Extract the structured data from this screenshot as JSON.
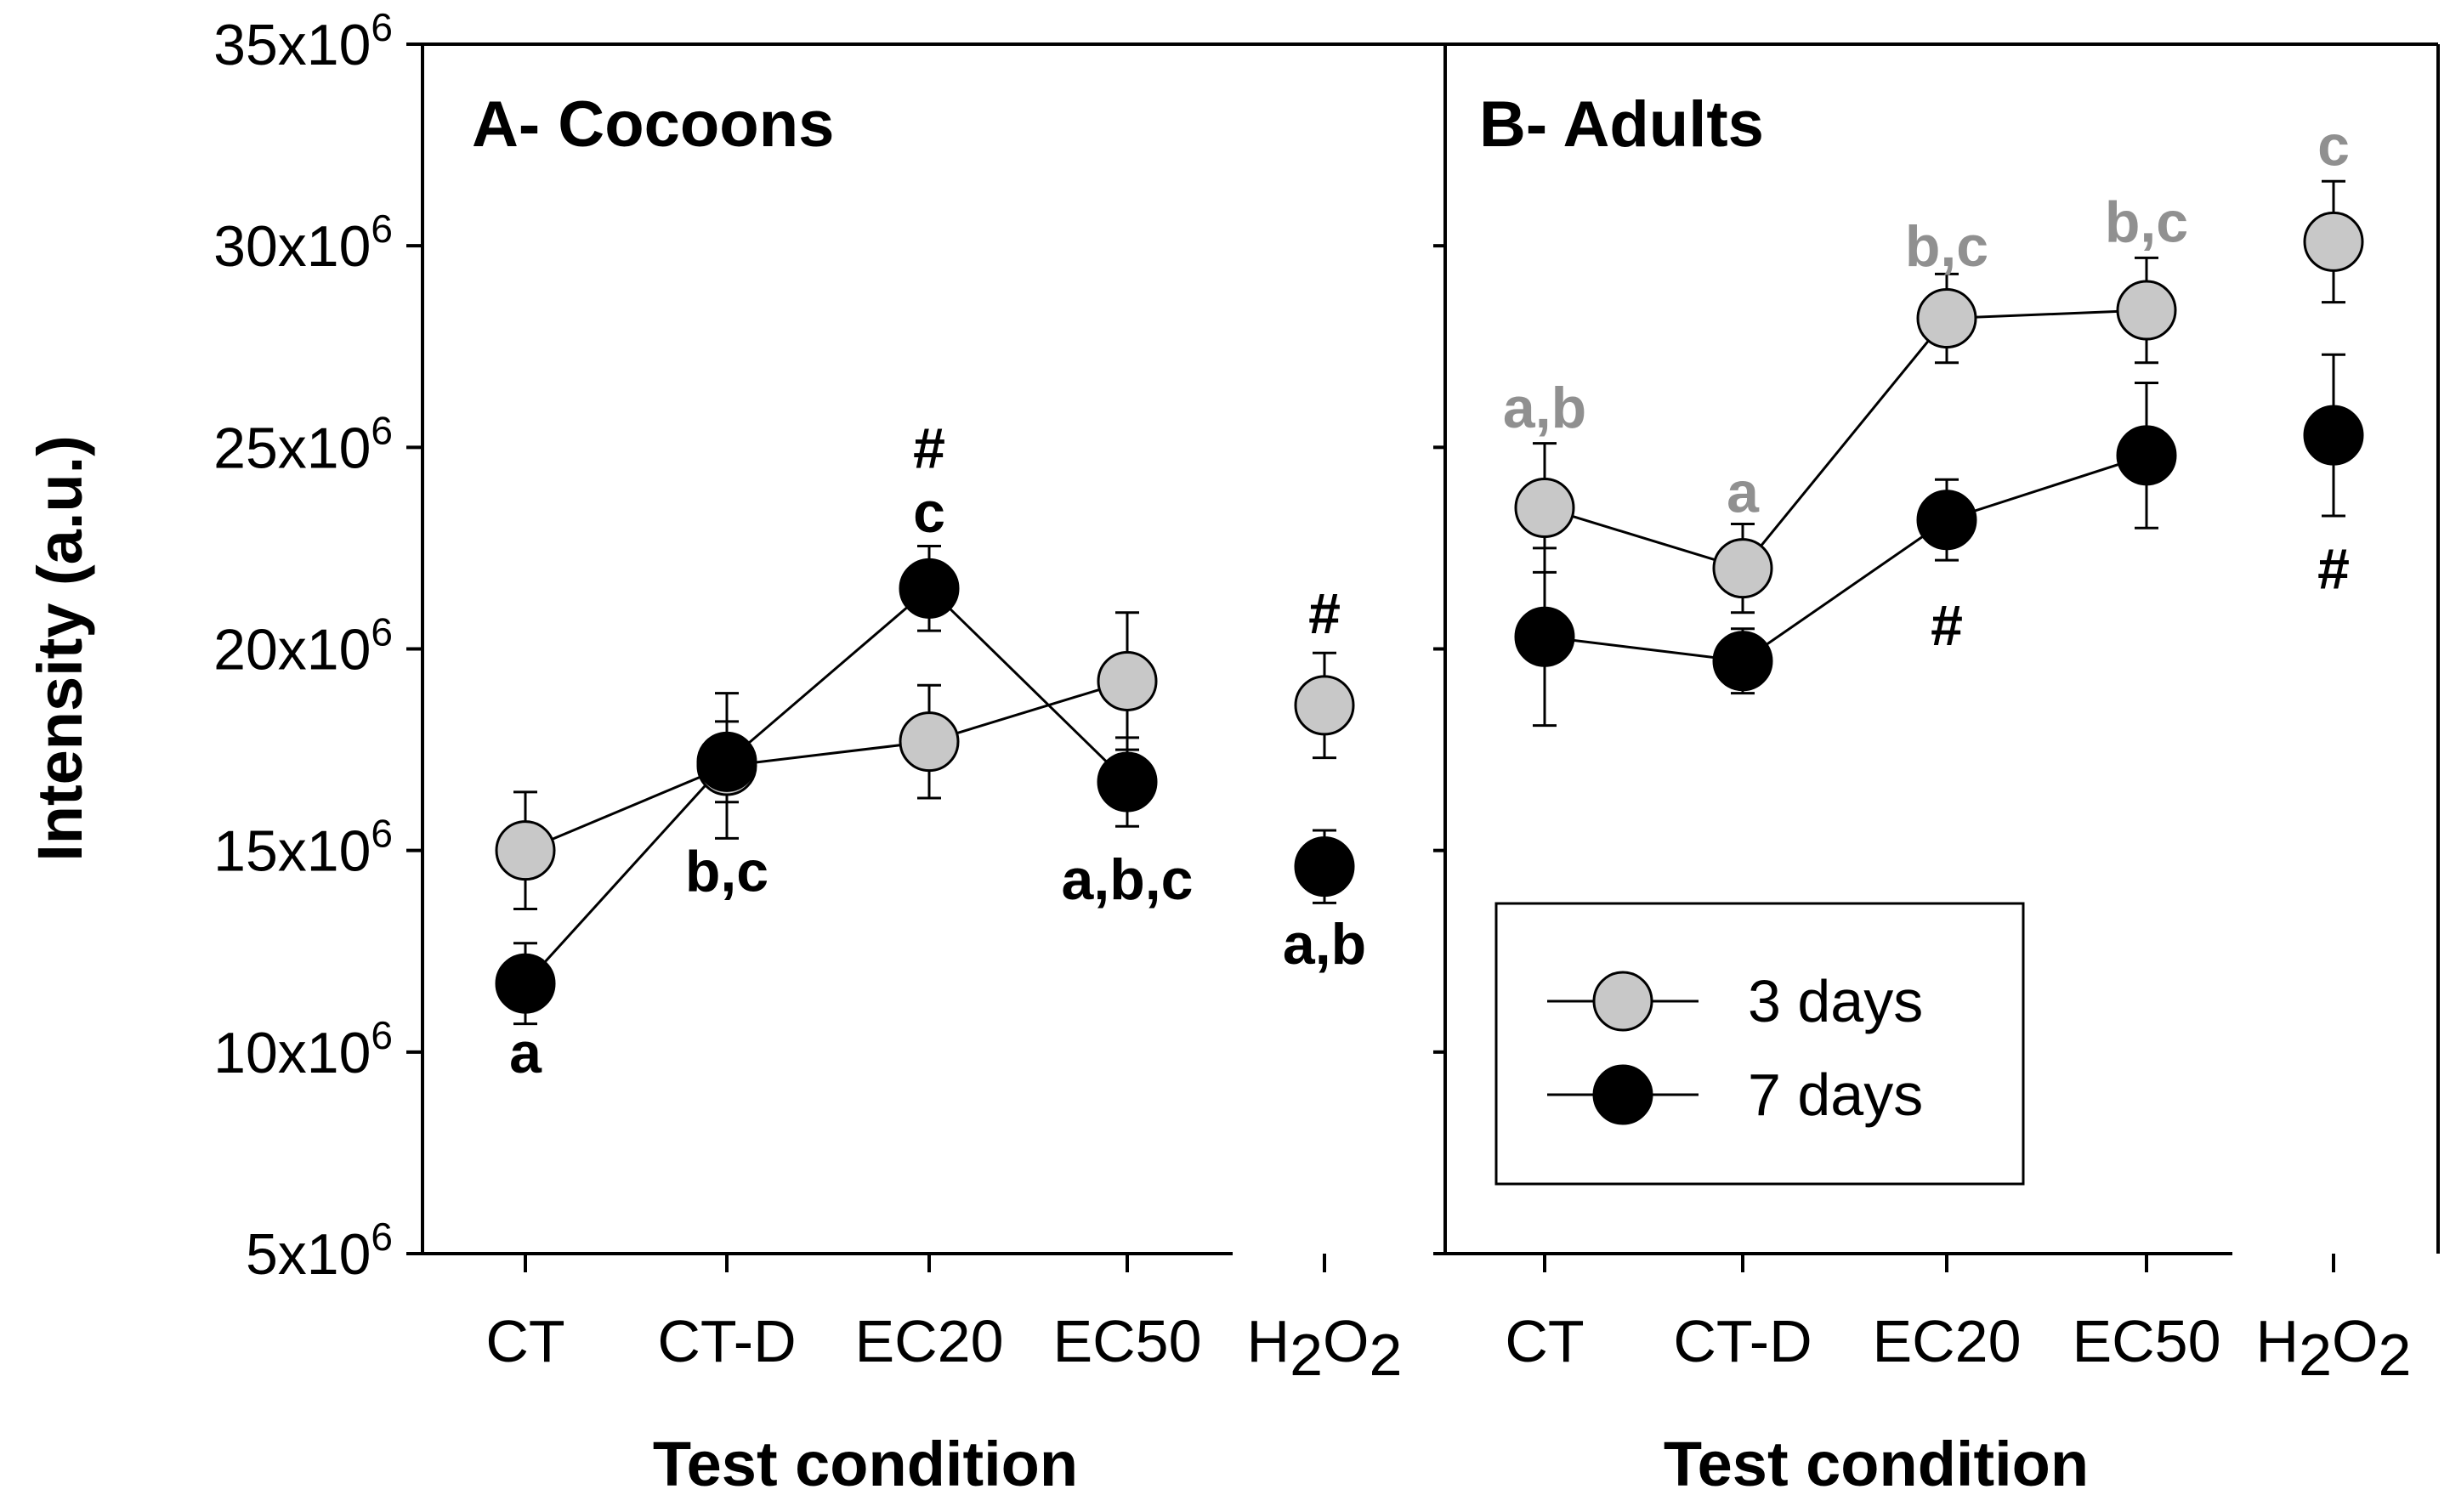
{
  "chart_data": [
    {
      "type": "line",
      "title": "A- Cocoons",
      "xlabel": "Test condition",
      "ylabel": "Intensity (a.u.)",
      "ylim": [
        5000000,
        35000000
      ],
      "categories": [
        "CT",
        "CT-D",
        "EC20",
        "EC50",
        "H2O2"
      ],
      "series": [
        {
          "name": "3 days",
          "color": "#c8c8c8",
          "values": [
            15000000,
            17100000,
            17700000,
            19200000,
            18600000
          ],
          "errors": [
            1450000,
            1800000,
            1400000,
            1700000,
            1300000
          ]
        },
        {
          "name": "7 days",
          "color": "#000000",
          "values": [
            11700000,
            17200000,
            21500000,
            16700000,
            14600000
          ],
          "errors": [
            1000000,
            1000000,
            1050000,
            1100000,
            900000
          ]
        }
      ],
      "annotations": [
        {
          "text": "a",
          "series": 1,
          "category": 0,
          "value": 10000000
        },
        {
          "text": "b,c",
          "series": 1,
          "category": 1,
          "value": 14500000
        },
        {
          "text": "c",
          "series": 1,
          "category": 2,
          "value": 23400000
        },
        {
          "text": "#",
          "series": 1,
          "category": 2,
          "value": 25000000
        },
        {
          "text": "a,b,c",
          "series": 1,
          "category": 3,
          "value": 14300000
        },
        {
          "text": "#",
          "series": 0,
          "category": 4,
          "value": 20900000
        },
        {
          "text": "a,b",
          "series": 1,
          "category": 4,
          "value": 12700000
        }
      ]
    },
    {
      "type": "line",
      "title": "B- Adults",
      "xlabel": "Test condition",
      "ylabel": "Intensity (a.u.)",
      "ylim": [
        5000000,
        35000000
      ],
      "categories": [
        "CT",
        "CT-D",
        "EC20",
        "EC50",
        "H2O2"
      ],
      "series": [
        {
          "name": "3 days",
          "color": "#c8c8c8",
          "values": [
            23500000,
            22000000,
            28200000,
            28400000,
            30100000
          ],
          "errors": [
            1600000,
            1100000,
            1100000,
            1300000,
            1500000
          ]
        },
        {
          "name": "7 days",
          "color": "#000000",
          "values": [
            20300000,
            19700000,
            23200000,
            24800000,
            25300000
          ],
          "errors": [
            2200000,
            800000,
            1000000,
            1800000,
            2000000
          ]
        }
      ],
      "annotations": [
        {
          "text": "a,b",
          "series": 0,
          "category": 0,
          "value": 26000000
        },
        {
          "text": "a",
          "series": 0,
          "category": 1,
          "value": 23900000
        },
        {
          "text": "b,c",
          "series": 0,
          "category": 2,
          "value": 30000000
        },
        {
          "text": "b,c",
          "series": 0,
          "category": 3,
          "value": 30600000
        },
        {
          "text": "c",
          "series": 0,
          "category": 4,
          "value": 32500000
        },
        {
          "text": "#",
          "series": 1,
          "category": 2,
          "value": 20600000
        },
        {
          "text": "#",
          "series": 1,
          "category": 4,
          "value": 22000000
        }
      ]
    }
  ],
  "y_ticks": [
    {
      "value": 5000000,
      "base": "5x10",
      "exp": "6"
    },
    {
      "value": 10000000,
      "base": "10x10",
      "exp": "6"
    },
    {
      "value": 15000000,
      "base": "15x10",
      "exp": "6"
    },
    {
      "value": 20000000,
      "base": "20x10",
      "exp": "6"
    },
    {
      "value": 25000000,
      "base": "25x10",
      "exp": "6"
    },
    {
      "value": 30000000,
      "base": "30x10",
      "exp": "6"
    },
    {
      "value": 35000000,
      "base": "35x10",
      "exp": "6"
    }
  ],
  "category_display": [
    {
      "base": "CT"
    },
    {
      "base": "CT-D"
    },
    {
      "base": "EC20"
    },
    {
      "base": "EC50"
    },
    {
      "parts": [
        {
          "t": "H",
          "sub": false
        },
        {
          "t": "2",
          "sub": true
        },
        {
          "t": "O",
          "sub": false
        },
        {
          "t": "2",
          "sub": true
        }
      ]
    }
  ],
  "legend": {
    "items": [
      {
        "label": "3 days",
        "color": "#c8c8c8"
      },
      {
        "label": "7 days",
        "color": "#000000"
      }
    ],
    "placement": "bottom-right of panel B"
  },
  "annotation_colors": {
    "gray": "#909090",
    "black": "#000000"
  }
}
